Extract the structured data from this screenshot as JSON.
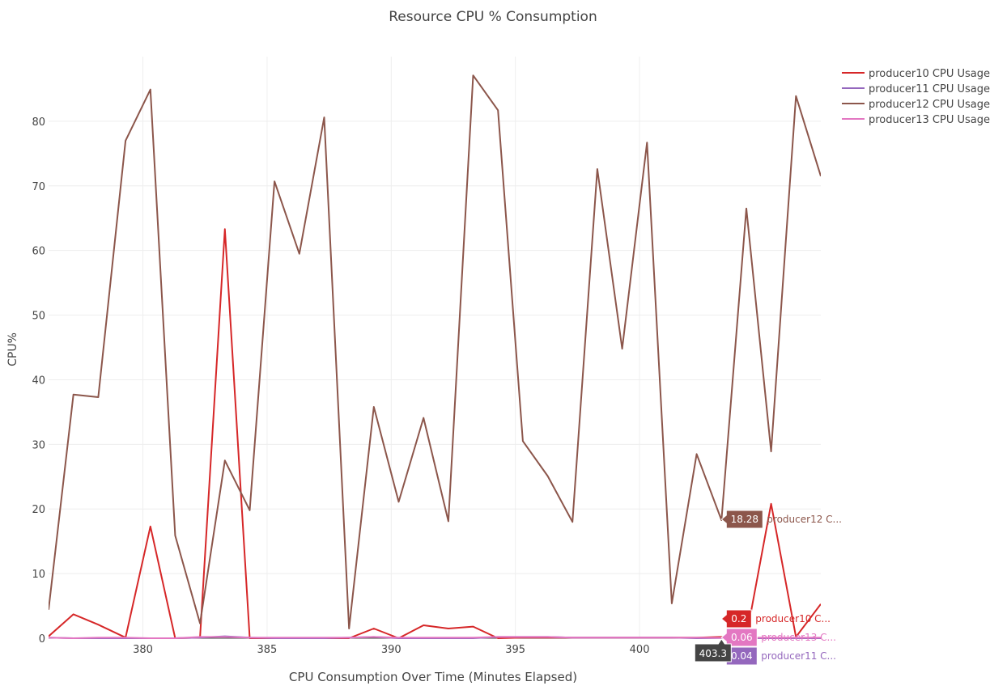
{
  "chart_data": {
    "type": "line",
    "title": "Resource CPU % Consumption",
    "xlabel": "CPU Consumption Over Time (Minutes Elapsed)",
    "ylabel": "CPU%",
    "xlim": [
      376.2,
      407.3
    ],
    "ylim": [
      0,
      90
    ],
    "xticks": [
      380,
      385,
      390,
      395,
      400
    ],
    "yticks": [
      0,
      10,
      20,
      30,
      40,
      50,
      60,
      70,
      80
    ],
    "grid": true,
    "legend_position": "top-right",
    "hover_x_label": "403.3",
    "series": [
      {
        "name": "producer10 CPU Usage",
        "color": "#d62728",
        "x": [
          376.2,
          377.2,
          378.2,
          379.3,
          380.3,
          381.3,
          382.3,
          383.3,
          384.3,
          385.3,
          386.3,
          387.3,
          388.3,
          389.3,
          390.3,
          391.3,
          392.3,
          393.3,
          394.3,
          395.3,
          396.3,
          397.3,
          398.3,
          399.3,
          400.3,
          401.3,
          402.3,
          403.3,
          404.3,
          405.3,
          406.3,
          407.3
        ],
        "y": [
          0.3,
          3.7,
          2.1,
          0.1,
          17.3,
          0.0,
          0.1,
          63.3,
          0.0,
          0.0,
          0.0,
          0.0,
          0.0,
          1.5,
          0.0,
          2.0,
          1.5,
          1.8,
          0.0,
          0.1,
          0.1,
          0.1,
          0.1,
          0.1,
          0.1,
          0.1,
          0.1,
          0.2,
          0.2,
          20.8,
          0.2,
          5.3
        ],
        "hover_label": "0.2",
        "hover_name": "producer10 C..."
      },
      {
        "name": "producer11 CPU Usage",
        "color": "#9467bd",
        "x": [
          376.2,
          377.2,
          378.2,
          379.3,
          380.3,
          381.3,
          382.3,
          383.3,
          384.3,
          385.3,
          386.3,
          387.3,
          388.3,
          389.3,
          390.3,
          391.3,
          392.3,
          393.3,
          394.3,
          395.3,
          396.3,
          397.3,
          398.3,
          399.3,
          400.3,
          401.3,
          402.3,
          403.3,
          404.3,
          405.3,
          406.3,
          407.3
        ],
        "y": [
          0.1,
          0.0,
          0.0,
          0.0,
          0.0,
          0.0,
          0.1,
          0.3,
          0.1,
          0.0,
          0.0,
          0.0,
          0.1,
          0.2,
          0.0,
          0.0,
          0.0,
          0.0,
          0.2,
          0.2,
          0.2,
          0.1,
          0.1,
          0.1,
          0.1,
          0.1,
          0.0,
          0.04,
          0.0,
          0.0,
          0.0,
          0.0
        ],
        "hover_label": "0.04",
        "hover_name": "producer11 C..."
      },
      {
        "name": "producer12 CPU Usage",
        "color": "#8c564b",
        "x": [
          376.2,
          377.2,
          378.2,
          379.3,
          380.3,
          381.3,
          382.3,
          383.3,
          384.3,
          385.3,
          386.3,
          387.3,
          388.3,
          389.3,
          390.3,
          391.3,
          392.3,
          393.3,
          394.3,
          395.3,
          396.3,
          397.3,
          398.3,
          399.3,
          400.3,
          401.3,
          402.3,
          403.3,
          404.3,
          405.3,
          406.3,
          407.3
        ],
        "y": [
          4.4,
          37.7,
          37.3,
          77.0,
          84.9,
          15.9,
          2.3,
          27.5,
          19.8,
          70.7,
          59.5,
          80.6,
          1.5,
          35.8,
          21.1,
          34.1,
          18.1,
          87.1,
          81.7,
          30.5,
          25.1,
          18.0,
          72.6,
          44.8,
          76.7,
          5.4,
          28.5,
          18.28,
          66.5,
          28.9,
          83.9,
          71.5
        ],
        "hover_label": "18.28",
        "hover_name": "producer12 C..."
      },
      {
        "name": "producer13 CPU Usage",
        "color": "#e377c2",
        "x": [
          376.2,
          377.2,
          378.2,
          379.3,
          380.3,
          381.3,
          382.3,
          383.3,
          384.3,
          385.3,
          386.3,
          387.3,
          388.3,
          389.3,
          390.3,
          391.3,
          392.3,
          393.3,
          394.3,
          395.3,
          396.3,
          397.3,
          398.3,
          399.3,
          400.3,
          401.3,
          402.3,
          403.3,
          404.3,
          405.3,
          406.3,
          407.3
        ],
        "y": [
          0.1,
          0.0,
          0.1,
          0.1,
          0.0,
          0.0,
          0.2,
          0.2,
          0.1,
          0.1,
          0.1,
          0.1,
          0.1,
          0.2,
          0.1,
          0.1,
          0.1,
          0.1,
          0.2,
          0.2,
          0.2,
          0.1,
          0.1,
          0.1,
          0.1,
          0.1,
          0.1,
          0.06,
          0.1,
          0.1,
          0.1,
          0.1
        ],
        "hover_label": "0.06",
        "hover_name": "producer13 C..."
      }
    ]
  }
}
